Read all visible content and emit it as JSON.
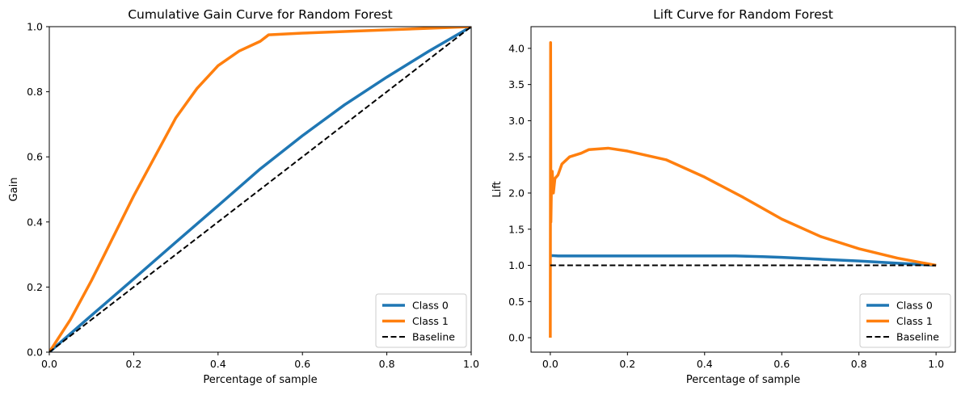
{
  "chart_data": [
    {
      "type": "line",
      "title": "Cumulative Gain Curve for Random Forest",
      "xlabel": "Percentage of sample",
      "ylabel": "Gain",
      "xlim": [
        0,
        1
      ],
      "ylim": [
        0,
        1
      ],
      "xticks": [
        "0.0",
        "0.2",
        "0.4",
        "0.6",
        "0.8",
        "1.0"
      ],
      "yticks": [
        "0.0",
        "0.2",
        "0.4",
        "0.6",
        "0.8",
        "1.0"
      ],
      "grid": false,
      "legend_position": "bottom-right",
      "series": [
        {
          "name": "Class 0",
          "color": "#1f77b4",
          "style": "solid",
          "x": [
            0.0,
            0.1,
            0.2,
            0.3,
            0.4,
            0.5,
            0.6,
            0.7,
            0.8,
            0.9,
            1.0
          ],
          "y": [
            0.0,
            0.113,
            0.225,
            0.338,
            0.45,
            0.563,
            0.665,
            0.76,
            0.845,
            0.925,
            1.0
          ]
        },
        {
          "name": "Class 1",
          "color": "#ff7f0e",
          "style": "solid",
          "x": [
            0.0,
            0.05,
            0.1,
            0.15,
            0.2,
            0.25,
            0.3,
            0.35,
            0.4,
            0.45,
            0.5,
            0.52,
            0.6,
            0.7,
            0.8,
            0.9,
            1.0
          ],
          "y": [
            0.0,
            0.1,
            0.22,
            0.35,
            0.48,
            0.6,
            0.72,
            0.81,
            0.88,
            0.925,
            0.955,
            0.975,
            0.98,
            0.985,
            0.99,
            0.995,
            1.0
          ]
        },
        {
          "name": "Baseline",
          "color": "#000000",
          "style": "dashed",
          "x": [
            0.0,
            1.0
          ],
          "y": [
            0.0,
            1.0
          ]
        }
      ]
    },
    {
      "type": "line",
      "title": "Lift Curve for Random Forest",
      "xlabel": "Percentage of sample",
      "ylabel": "Lift",
      "xlim": [
        -0.05,
        1.05
      ],
      "ylim": [
        -0.2,
        4.3
      ],
      "xticks": [
        "0.0",
        "0.2",
        "0.4",
        "0.6",
        "0.8",
        "1.0"
      ],
      "yticks": [
        "0.0",
        "0.5",
        "1.0",
        "1.5",
        "2.0",
        "2.5",
        "3.0",
        "3.5",
        "4.0"
      ],
      "grid": false,
      "legend_position": "bottom-right",
      "series": [
        {
          "name": "Class 0",
          "color": "#1f77b4",
          "style": "solid",
          "x": [
            0.0,
            0.005,
            0.02,
            0.1,
            0.2,
            0.3,
            0.4,
            0.48,
            0.55,
            0.6,
            0.7,
            0.8,
            0.9,
            1.0
          ],
          "y": [
            1.13,
            1.135,
            1.13,
            1.13,
            1.13,
            1.13,
            1.13,
            1.13,
            1.12,
            1.11,
            1.085,
            1.06,
            1.03,
            1.0
          ]
        },
        {
          "name": "Class 1",
          "color": "#ff7f0e",
          "style": "solid",
          "x": [
            0.0,
            0.0008,
            0.0015,
            0.003,
            0.005,
            0.008,
            0.012,
            0.02,
            0.03,
            0.05,
            0.08,
            0.1,
            0.15,
            0.2,
            0.3,
            0.4,
            0.5,
            0.6,
            0.7,
            0.8,
            0.9,
            1.0
          ],
          "y": [
            0.0,
            4.08,
            1.6,
            2.1,
            2.3,
            2.0,
            2.2,
            2.25,
            2.4,
            2.5,
            2.55,
            2.6,
            2.62,
            2.58,
            2.46,
            2.22,
            1.94,
            1.64,
            1.4,
            1.23,
            1.1,
            1.0
          ]
        },
        {
          "name": "Baseline",
          "color": "#000000",
          "style": "dashed",
          "x": [
            0.0,
            1.0
          ],
          "y": [
            1.0,
            1.0
          ]
        }
      ]
    }
  ]
}
